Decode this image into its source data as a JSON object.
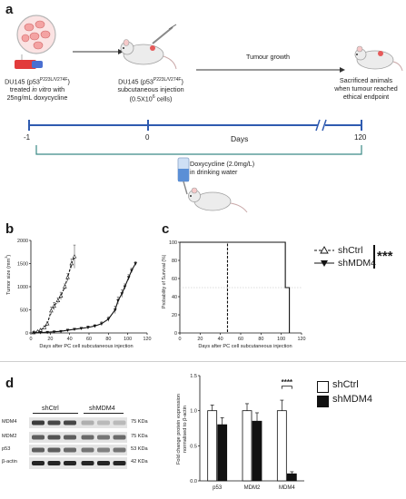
{
  "panel_a": {
    "letter": "a",
    "step1": {
      "line1_prefix": "DU145 (p53",
      "line1_sup": "P223L/V274F",
      "line1_suffix": ")",
      "line2_pre": "treated ",
      "line2_em": "in vitro",
      "line2_post": " with",
      "line3": "25ng/mL doxycycline"
    },
    "step2": {
      "line1_prefix": "DU145 (p53",
      "line1_sup": "P223L/V274F",
      "line1_suffix": ")",
      "line2": "subcutaneous injection",
      "line3_prefix": "(0.5X10",
      "line3_sup": "6",
      "line3_suffix": " cells)"
    },
    "growth_label": "Tumour growth",
    "step3": {
      "line1": "Sacrificed animals",
      "line2": "when tumour reached",
      "line3": "ethical endpoint"
    },
    "timeline": {
      "ticks": [
        "-1",
        "0",
        "120"
      ],
      "axis_label": "Days"
    },
    "doxy": {
      "line1": "Doxycycline (2.0mg/L)",
      "line2": "in drinking water"
    }
  },
  "panel_b": {
    "letter": "b",
    "ylabel_prefix": "Tumor size (mm",
    "ylabel_sup": "3",
    "ylabel_suffix": ")",
    "xlabel": "Days after PC cell subcutaneous injection"
  },
  "panel_c": {
    "letter": "c",
    "ylabel": "Probability of Survival (%)",
    "xlabel": "Days after PC cell subcutaneous injection",
    "legend": [
      "shCtrl",
      "shMDM4"
    ],
    "significance": "***"
  },
  "panel_d": {
    "letter": "d",
    "blot": {
      "groups": [
        "shCtrl",
        "shMDM4"
      ],
      "rows": [
        {
          "label": "MDM4",
          "kda": "75 KDa"
        },
        {
          "label": "MDM2",
          "kda": "75 KDa"
        },
        {
          "label": "p53",
          "kda": "53 KDa"
        },
        {
          "label": "β-actin",
          "kda": "42 KDa"
        }
      ]
    },
    "bar_ylabel_line1": "Fold change protein expression",
    "bar_ylabel_line2": "normalised to β-actin",
    "legend": [
      "shCtrl",
      "shMDM4"
    ],
    "significance": "****"
  },
  "chart_data": [
    {
      "type": "line",
      "panel": "b",
      "title": "",
      "xlabel": "Days after PC cell subcutaneous injection",
      "ylabel": "Tumor size (mm3)",
      "xlim": [
        0,
        120
      ],
      "ylim": [
        0,
        2000
      ],
      "xticks": [
        "0",
        "20",
        "40",
        "60",
        "80",
        "100",
        "120"
      ],
      "yticks": [
        "0",
        "500",
        "1000",
        "1500",
        "2000"
      ],
      "series": [
        {
          "style": "dashed-open-triangle",
          "x": [
            3,
            7,
            10,
            14,
            17,
            21,
            24,
            28,
            31,
            35,
            38,
            42,
            45
          ],
          "y": [
            10,
            30,
            60,
            120,
            200,
            480,
            580,
            700,
            800,
            1000,
            1200,
            1500,
            1650
          ],
          "err": [
            5,
            10,
            20,
            30,
            40,
            80,
            80,
            60,
            80,
            60,
            80,
            100,
            250
          ]
        },
        {
          "style": "solid-filled-triangle",
          "x": [
            3,
            10,
            17,
            24,
            31,
            38,
            45,
            52,
            59,
            66,
            73,
            80,
            87,
            90,
            94,
            97,
            101,
            104,
            108
          ],
          "y": [
            5,
            10,
            15,
            25,
            35,
            60,
            80,
            100,
            120,
            150,
            200,
            300,
            500,
            700,
            850,
            1000,
            1200,
            1350,
            1500
          ],
          "err": [
            3,
            4,
            5,
            8,
            10,
            15,
            20,
            20,
            30,
            30,
            40,
            50,
            80,
            80,
            80,
            60,
            60,
            50,
            40
          ]
        }
      ]
    },
    {
      "type": "line",
      "panel": "c",
      "title": "",
      "xlabel": "Days after PC cell subcutaneous injection",
      "ylabel": "Probability of Survival (%)",
      "xlim": [
        0,
        120
      ],
      "ylim": [
        0,
        100
      ],
      "xticks": [
        "0",
        "20",
        "40",
        "60",
        "80",
        "100",
        "120"
      ],
      "yticks": [
        "0",
        "20",
        "40",
        "60",
        "80",
        "100"
      ],
      "series": [
        {
          "name": "shCtrl",
          "style": "dashed",
          "x": [
            0,
            47,
            47
          ],
          "y": [
            100,
            100,
            0
          ]
        },
        {
          "name": "shMDM4",
          "style": "solid",
          "x": [
            0,
            104,
            104,
            108,
            108
          ],
          "y": [
            100,
            100,
            50,
            50,
            0
          ]
        }
      ]
    },
    {
      "type": "bar",
      "panel": "d",
      "title": "",
      "categories": [
        "p53",
        "MDM2",
        "MDM4"
      ],
      "ylabel": "Fold change protein expression normalised to β-actin",
      "ylim": [
        0,
        1.5
      ],
      "yticks": [
        "0.0",
        "0.5",
        "1.0",
        "1.5"
      ],
      "series": [
        {
          "name": "shCtrl",
          "values": [
            1.0,
            1.0,
            1.0
          ],
          "err": [
            0.08,
            0.1,
            0.15
          ]
        },
        {
          "name": "shMDM4",
          "values": [
            0.8,
            0.85,
            0.1
          ],
          "err": [
            0.1,
            0.12,
            0.03
          ]
        }
      ]
    }
  ]
}
